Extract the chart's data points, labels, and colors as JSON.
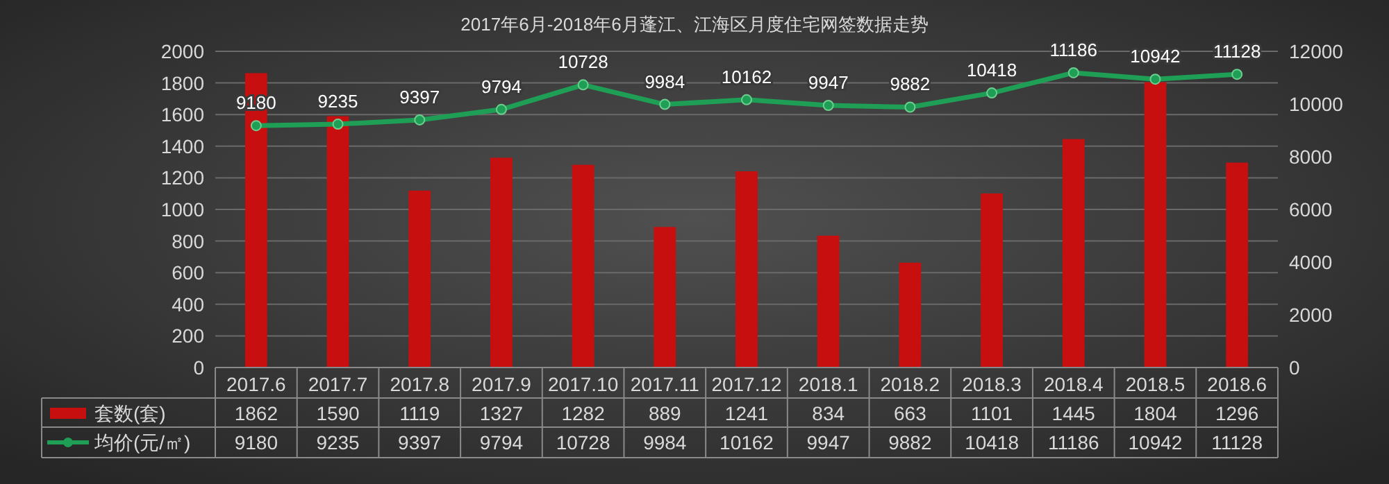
{
  "chart_data": {
    "type": "bar",
    "title": "2017年6月-2018年6月蓬江、江海区月度住宅网签数据走势",
    "categories": [
      "2017.6",
      "2017.7",
      "2017.8",
      "2017.9",
      "2017.10",
      "2017.11",
      "2017.12",
      "2018.1",
      "2018.2",
      "2018.3",
      "2018.4",
      "2018.5",
      "2018.6"
    ],
    "series": [
      {
        "name": "套数(套)",
        "color": "#c80f0f",
        "values": [
          1862,
          1590,
          1119,
          1327,
          1282,
          889,
          1241,
          834,
          663,
          1101,
          1445,
          1804,
          1296
        ]
      },
      {
        "name": "均价(元/㎡)",
        "type": "line",
        "axis": "y2",
        "color": "#1f9e55",
        "values": [
          9180,
          9235,
          9397,
          9794,
          10728,
          9984,
          10162,
          9947,
          9882,
          10418,
          11186,
          10942,
          11128
        ]
      }
    ],
    "annotations": [
      "9180",
      "9235",
      "9397",
      "9794",
      "10728",
      "9984",
      "10162",
      "9947",
      "9882",
      "10418",
      "11186",
      "10942",
      "11128"
    ],
    "ylim": [
      0,
      2000
    ],
    "yticks": [
      0,
      200,
      400,
      600,
      800,
      1000,
      1200,
      1400,
      1600,
      1800,
      2000
    ],
    "y2lim": [
      0,
      12000
    ],
    "y2ticks": [
      0,
      2000,
      4000,
      6000,
      8000,
      10000,
      12000
    ],
    "grid": "y",
    "data_labels": true,
    "legend": "bottom left",
    "marker": "circle"
  }
}
